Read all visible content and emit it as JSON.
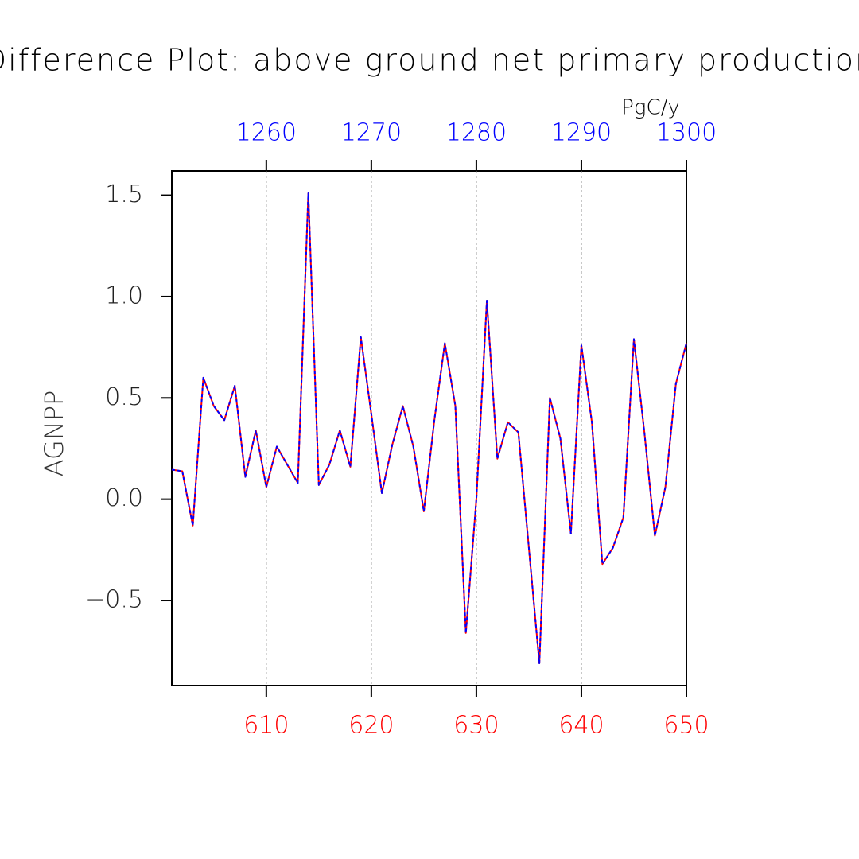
{
  "chart_data": {
    "type": "line",
    "title": "Difference Plot: above ground net primary production",
    "y_label": "AGNPP",
    "units": "PgC/y",
    "xlim": [
      601,
      650
    ],
    "xticks": [
      610,
      620,
      630,
      640,
      650
    ],
    "x_color": "#ff0000",
    "x2lim": [
      1251,
      1300
    ],
    "x2ticks": [
      1260,
      1270,
      1280,
      1290,
      1300
    ],
    "x2_color": "#0000ff",
    "ylim": [
      -0.92,
      1.62
    ],
    "yticks": [
      {
        "value": -0.5,
        "label": "−0.5"
      },
      {
        "value": 0,
        "label": "0.0"
      },
      0.5,
      {
        "value": 1,
        "label": "1.0"
      },
      1.5
    ],
    "grid": "x",
    "series": [
      {
        "color": "#ff0000",
        "x": [
          601,
          602,
          603,
          604,
          605,
          606,
          607,
          608,
          609,
          610,
          611,
          612,
          613,
          614,
          615,
          616,
          617,
          618,
          619,
          620,
          621,
          622,
          623,
          624,
          625,
          626,
          627,
          628,
          629,
          630,
          631,
          632,
          633,
          634,
          635,
          636,
          637,
          638,
          639,
          640,
          641,
          642,
          643,
          644,
          645,
          646,
          647,
          648,
          649,
          650
        ],
        "values": [
          0.146,
          0.138,
          -0.13,
          0.6,
          0.46,
          0.39,
          0.56,
          0.11,
          0.34,
          0.06,
          0.26,
          0.17,
          0.08,
          1.51,
          0.07,
          0.17,
          0.34,
          0.16,
          0.8,
          0.42,
          0.03,
          0.27,
          0.46,
          0.26,
          -0.06,
          0.39,
          0.77,
          0.46,
          -0.66,
          0.0,
          0.98,
          0.2,
          0.38,
          0.33,
          -0.24,
          -0.81,
          0.5,
          0.3,
          -0.17,
          0.76,
          0.38,
          -0.32,
          -0.24,
          -0.09,
          0.79,
          0.33,
          -0.18,
          0.06,
          0.57,
          0.77
        ]
      },
      {
        "color": "#0000ff",
        "axis": "x2",
        "dashed": true,
        "x": [
          1251,
          1252,
          1253,
          1254,
          1255,
          1256,
          1257,
          1258,
          1259,
          1260,
          1261,
          1262,
          1263,
          1264,
          1265,
          1266,
          1267,
          1268,
          1269,
          1270,
          1271,
          1272,
          1273,
          1274,
          1275,
          1276,
          1277,
          1278,
          1279,
          1280,
          1281,
          1282,
          1283,
          1284,
          1285,
          1286,
          1287,
          1288,
          1289,
          1290,
          1291,
          1292,
          1293,
          1294,
          1295,
          1296,
          1297,
          1298,
          1299,
          1300
        ],
        "values": [
          0.146,
          0.138,
          -0.13,
          0.6,
          0.46,
          0.39,
          0.56,
          0.11,
          0.34,
          0.06,
          0.26,
          0.17,
          0.08,
          1.51,
          0.07,
          0.17,
          0.34,
          0.16,
          0.8,
          0.42,
          0.03,
          0.27,
          0.46,
          0.26,
          -0.06,
          0.39,
          0.77,
          0.46,
          -0.66,
          0.0,
          0.98,
          0.2,
          0.38,
          0.33,
          -0.24,
          -0.81,
          0.5,
          0.3,
          -0.17,
          0.76,
          0.38,
          -0.32,
          -0.24,
          -0.09,
          0.79,
          0.33,
          -0.18,
          0.06,
          0.57,
          0.77
        ]
      }
    ]
  }
}
